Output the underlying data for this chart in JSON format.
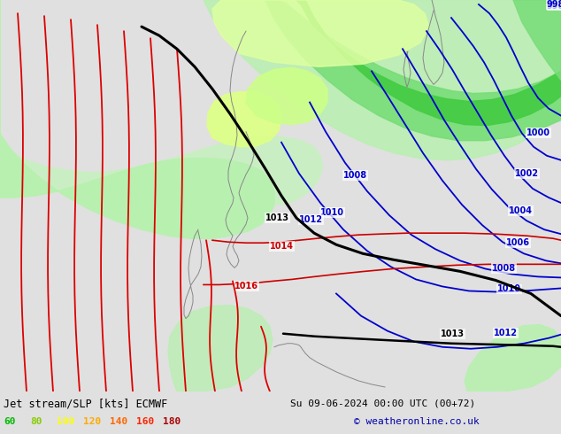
{
  "title_left": "Jet stream/SLP [kts] ECMWF",
  "title_right": "Su 09-06-2024 00:00 UTC (00+72)",
  "copyright": "© weatheronline.co.uk",
  "legend_values": [
    60,
    80,
    100,
    120,
    140,
    160,
    180
  ],
  "legend_colors": [
    "#00bb00",
    "#88cc00",
    "#ffff00",
    "#ffaa00",
    "#ff6600",
    "#ff2200",
    "#aa0000"
  ],
  "bg_color": "#e0e0e0",
  "map_bg": "#e8e8e8",
  "isobar_color": "#0000cc",
  "jet_black": "#000000",
  "jet_red": "#dd0000",
  "green_light": "#b8f0b0",
  "green_medium": "#78dd78",
  "green_bright": "#44cc44",
  "green_yellow": "#ccff88",
  "coast_color": "#888888",
  "figsize": [
    6.34,
    4.9
  ],
  "dpi": 100
}
